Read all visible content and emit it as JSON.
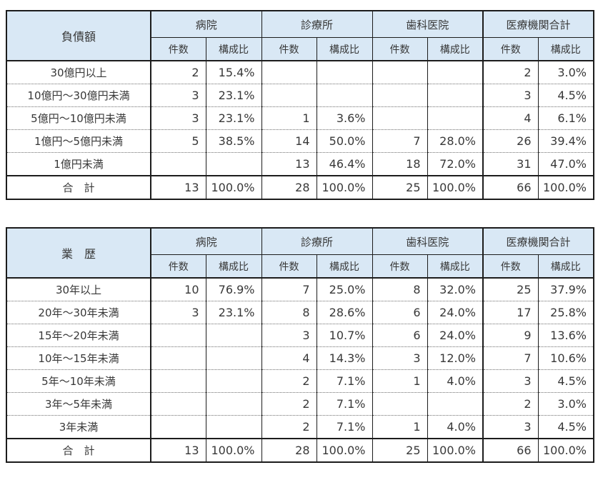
{
  "colors": {
    "header_bg": "#d9e8f5",
    "border": "#1c1c1c",
    "text": "#383838",
    "page_bg": "#ffffff"
  },
  "tables": [
    {
      "title": "負債額",
      "groups": [
        "病院",
        "診療所",
        "歯科医院",
        "医療機関合計"
      ],
      "subheaders": [
        "件数",
        "構成比"
      ],
      "rows": [
        {
          "label": "30億円以上",
          "values": [
            "2",
            "15.4%",
            "",
            "",
            "",
            "",
            "2",
            "3.0%"
          ]
        },
        {
          "label": "10億円～30億円未満",
          "values": [
            "3",
            "23.1%",
            "",
            "",
            "",
            "",
            "3",
            "4.5%"
          ]
        },
        {
          "label": "5億円～10億円未満",
          "values": [
            "3",
            "23.1%",
            "1",
            "3.6%",
            "",
            "",
            "4",
            "6.1%"
          ]
        },
        {
          "label": "1億円～5億円未満",
          "values": [
            "5",
            "38.5%",
            "14",
            "50.0%",
            "7",
            "28.0%",
            "26",
            "39.4%"
          ]
        },
        {
          "label": "1億円未満",
          "values": [
            "",
            "",
            "13",
            "46.4%",
            "18",
            "72.0%",
            "31",
            "47.0%"
          ]
        }
      ],
      "total": {
        "label": "合　計",
        "values": [
          "13",
          "100.0%",
          "28",
          "100.0%",
          "25",
          "100.0%",
          "66",
          "100.0%"
        ]
      }
    },
    {
      "title": "業　歴",
      "groups": [
        "病院",
        "診療所",
        "歯科医院",
        "医療機関合計"
      ],
      "subheaders": [
        "件数",
        "構成比"
      ],
      "rows": [
        {
          "label": "30年以上",
          "values": [
            "10",
            "76.9%",
            "7",
            "25.0%",
            "8",
            "32.0%",
            "25",
            "37.9%"
          ]
        },
        {
          "label": "20年～30年未満",
          "values": [
            "3",
            "23.1%",
            "8",
            "28.6%",
            "6",
            "24.0%",
            "17",
            "25.8%"
          ]
        },
        {
          "label": "15年～20年未満",
          "values": [
            "",
            "",
            "3",
            "10.7%",
            "6",
            "24.0%",
            "9",
            "13.6%"
          ]
        },
        {
          "label": "10年～15年未満",
          "values": [
            "",
            "",
            "4",
            "14.3%",
            "3",
            "12.0%",
            "7",
            "10.6%"
          ]
        },
        {
          "label": "5年～10年未満",
          "values": [
            "",
            "",
            "2",
            "7.1%",
            "1",
            "4.0%",
            "3",
            "4.5%"
          ]
        },
        {
          "label": "3年～5年未満",
          "values": [
            "",
            "",
            "2",
            "7.1%",
            "",
            "",
            "2",
            "3.0%"
          ]
        },
        {
          "label": "3年未満",
          "values": [
            "",
            "",
            "2",
            "7.1%",
            "1",
            "4.0%",
            "3",
            "4.5%"
          ]
        }
      ],
      "total": {
        "label": "合　計",
        "values": [
          "13",
          "100.0%",
          "28",
          "100.0%",
          "25",
          "100.0%",
          "66",
          "100.0%"
        ]
      }
    }
  ]
}
